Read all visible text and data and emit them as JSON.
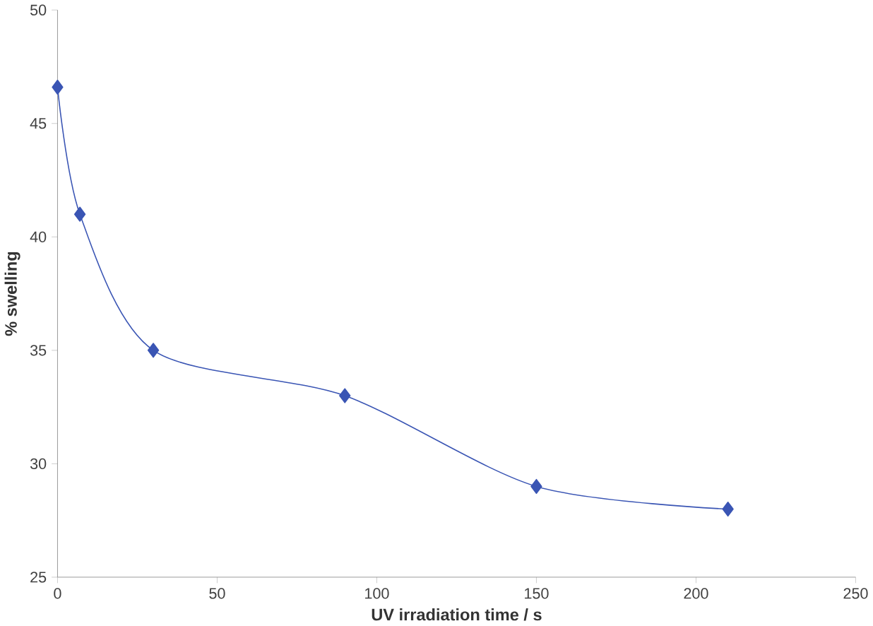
{
  "chart_data": {
    "type": "line",
    "xlabel": "UV irradiation time / s",
    "ylabel": "% swelling",
    "x": [
      0,
      7,
      30,
      90,
      150,
      210
    ],
    "series": [
      {
        "color": "#3a55b4",
        "values": [
          46.6,
          41,
          35,
          33,
          29,
          28
        ]
      }
    ],
    "xlim": [
      0,
      250
    ],
    "xticks": [
      0,
      50,
      100,
      150,
      200,
      250
    ],
    "ylim": [
      25,
      50
    ],
    "yticks": [
      25,
      30,
      35,
      40,
      45,
      50
    ],
    "marker": "diamond",
    "line_style": "solid",
    "grid": false
  }
}
